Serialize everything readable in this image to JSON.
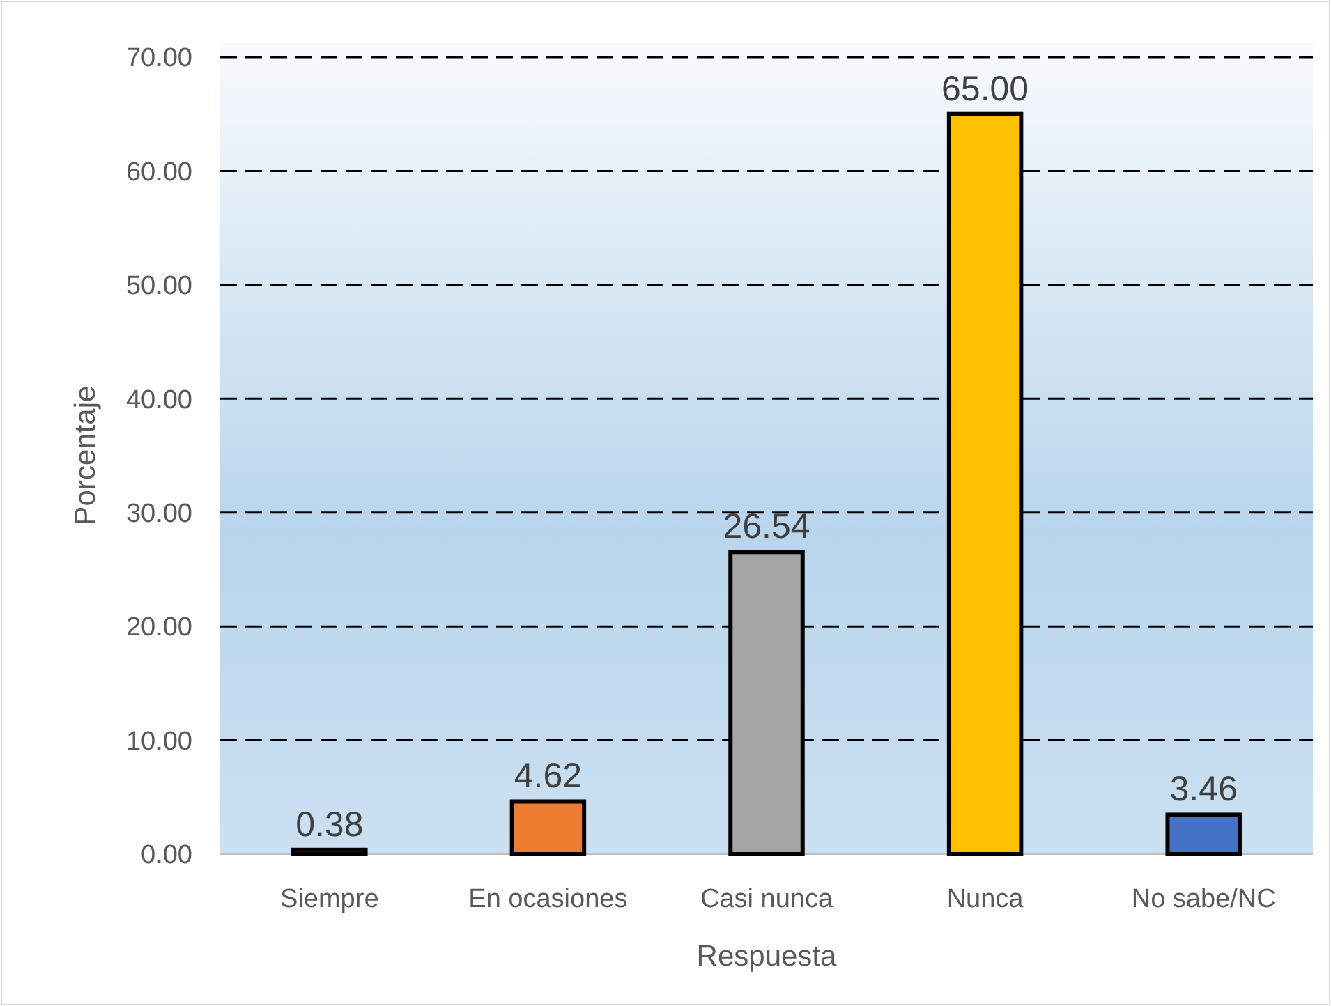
{
  "chart_data": {
    "type": "bar",
    "xlabel": "Respuesta",
    "ylabel": "Porcentaje",
    "categories": [
      "Siempre",
      "En ocasiones",
      "Casi nunca",
      "Nunca",
      "No sabe/NC"
    ],
    "values": [
      0.38,
      4.62,
      26.54,
      65.0,
      3.46
    ],
    "value_labels": [
      "0.38",
      "4.62",
      "26.54",
      "65.00",
      "3.46"
    ],
    "colors": [
      "#4472c4",
      "#ed7d31",
      "#a5a5a5",
      "#ffc000",
      "#4472c4"
    ],
    "ylim": [
      0,
      70
    ],
    "yticks": [
      {
        "value": 0,
        "label": "0.00"
      },
      {
        "value": 10,
        "label": "10.00"
      },
      {
        "value": 20,
        "label": "20.00"
      },
      {
        "value": 30,
        "label": "30.00"
      },
      {
        "value": 40,
        "label": "40.00"
      },
      {
        "value": 50,
        "label": "50.00"
      },
      {
        "value": 60,
        "label": "60.00"
      },
      {
        "value": 70,
        "label": "70.00"
      }
    ],
    "grid": "y"
  }
}
